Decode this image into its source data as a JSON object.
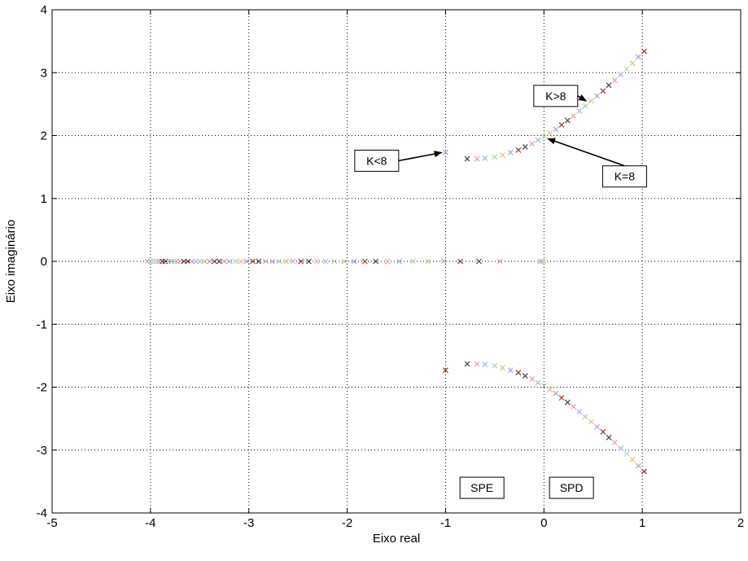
{
  "chart_data": {
    "type": "scatter",
    "title": "",
    "xlabel": "Eixo real",
    "ylabel": "Eixo imaginário",
    "xlim": [
      -5,
      2
    ],
    "ylim": [
      -4,
      4
    ],
    "xticks": [
      -5,
      -4,
      -3,
      -2,
      -1,
      0,
      1,
      2
    ],
    "yticks": [
      -4,
      -3,
      -2,
      -1,
      0,
      1,
      2,
      3,
      4
    ],
    "grid": true,
    "marker": "x",
    "series": [
      {
        "values": [
          {
            "x": -4.03,
            "y": 0
          },
          {
            "x": -4.0,
            "y": 0
          },
          {
            "x": -3.97,
            "y": 0
          },
          {
            "x": -3.94,
            "y": 0
          },
          {
            "x": -3.91,
            "y": 0
          },
          {
            "x": -3.88,
            "y": 0
          },
          {
            "x": -3.85,
            "y": 0
          },
          {
            "x": -3.82,
            "y": 0
          },
          {
            "x": -3.79,
            "y": 0
          },
          {
            "x": -3.76,
            "y": 0
          },
          {
            "x": -3.73,
            "y": 0
          },
          {
            "x": -3.7,
            "y": 0
          },
          {
            "x": -3.66,
            "y": 0
          },
          {
            "x": -3.62,
            "y": 0
          },
          {
            "x": -3.58,
            "y": 0
          },
          {
            "x": -3.54,
            "y": 0
          },
          {
            "x": -3.5,
            "y": 0
          },
          {
            "x": -3.45,
            "y": 0
          },
          {
            "x": -3.4,
            "y": 0
          },
          {
            "x": -3.35,
            "y": 0
          },
          {
            "x": -3.3,
            "y": 0
          },
          {
            "x": -3.25,
            "y": 0
          },
          {
            "x": -3.2,
            "y": 0
          },
          {
            "x": -3.14,
            "y": 0
          },
          {
            "x": -3.08,
            "y": 0
          },
          {
            "x": -3.02,
            "y": 0
          },
          {
            "x": -2.96,
            "y": 0
          },
          {
            "x": -2.9,
            "y": 0
          },
          {
            "x": -2.83,
            "y": 0
          },
          {
            "x": -2.76,
            "y": 0
          },
          {
            "x": -2.69,
            "y": 0
          },
          {
            "x": -2.62,
            "y": 0
          },
          {
            "x": -2.55,
            "y": 0
          },
          {
            "x": -2.47,
            "y": 0
          },
          {
            "x": -2.39,
            "y": 0
          },
          {
            "x": -2.31,
            "y": 0
          },
          {
            "x": -2.22,
            "y": 0
          },
          {
            "x": -2.13,
            "y": 0
          },
          {
            "x": -2.03,
            "y": 0
          },
          {
            "x": -1.93,
            "y": 0
          },
          {
            "x": -1.82,
            "y": 0
          },
          {
            "x": -1.71,
            "y": 0
          },
          {
            "x": -1.59,
            "y": 0
          },
          {
            "x": -1.47,
            "y": 0
          },
          {
            "x": -1.33,
            "y": 0
          },
          {
            "x": -1.18,
            "y": 0
          },
          {
            "x": -1.02,
            "y": 0
          },
          {
            "x": -0.85,
            "y": 0
          },
          {
            "x": -0.66,
            "y": 0
          },
          {
            "x": -0.45,
            "y": 0
          },
          {
            "x": -0.04,
            "y": 0
          },
          {
            "x": -0.02,
            "y": 0
          },
          {
            "x": 0.0,
            "y": 0
          },
          {
            "x": -1.0,
            "y": 1.73
          },
          {
            "x": -1.0,
            "y": -1.73
          },
          {
            "x": -0.78,
            "y": 1.63
          },
          {
            "x": -0.68,
            "y": 1.63
          },
          {
            "x": -0.6,
            "y": 1.64
          },
          {
            "x": -0.5,
            "y": 1.66
          },
          {
            "x": -0.42,
            "y": 1.69
          },
          {
            "x": -0.34,
            "y": 1.73
          },
          {
            "x": -0.26,
            "y": 1.77
          },
          {
            "x": -0.19,
            "y": 1.82
          },
          {
            "x": -0.12,
            "y": 1.87
          },
          {
            "x": -0.06,
            "y": 1.93
          },
          {
            "x": 0.0,
            "y": 1.98
          },
          {
            "x": 0.06,
            "y": 2.04
          },
          {
            "x": 0.12,
            "y": 2.1
          },
          {
            "x": 0.18,
            "y": 2.17
          },
          {
            "x": 0.24,
            "y": 2.24
          },
          {
            "x": 0.3,
            "y": 2.31
          },
          {
            "x": 0.36,
            "y": 2.39
          },
          {
            "x": 0.42,
            "y": 2.47
          },
          {
            "x": 0.48,
            "y": 2.55
          },
          {
            "x": 0.54,
            "y": 2.63
          },
          {
            "x": 0.6,
            "y": 2.71
          },
          {
            "x": 0.66,
            "y": 2.8
          },
          {
            "x": 0.72,
            "y": 2.88
          },
          {
            "x": 0.78,
            "y": 2.97
          },
          {
            "x": 0.84,
            "y": 3.06
          },
          {
            "x": 0.9,
            "y": 3.15
          },
          {
            "x": 0.96,
            "y": 3.25
          },
          {
            "x": 1.02,
            "y": 3.34
          },
          {
            "x": -0.78,
            "y": -1.63
          },
          {
            "x": -0.68,
            "y": -1.63
          },
          {
            "x": -0.6,
            "y": -1.64
          },
          {
            "x": -0.5,
            "y": -1.66
          },
          {
            "x": -0.42,
            "y": -1.69
          },
          {
            "x": -0.34,
            "y": -1.73
          },
          {
            "x": -0.26,
            "y": -1.77
          },
          {
            "x": -0.19,
            "y": -1.82
          },
          {
            "x": -0.12,
            "y": -1.87
          },
          {
            "x": -0.06,
            "y": -1.93
          },
          {
            "x": 0.0,
            "y": -1.98
          },
          {
            "x": 0.06,
            "y": -2.04
          },
          {
            "x": 0.12,
            "y": -2.1
          },
          {
            "x": 0.18,
            "y": -2.17
          },
          {
            "x": 0.24,
            "y": -2.24
          },
          {
            "x": 0.3,
            "y": -2.31
          },
          {
            "x": 0.36,
            "y": -2.39
          },
          {
            "x": 0.42,
            "y": -2.47
          },
          {
            "x": 0.48,
            "y": -2.55
          },
          {
            "x": 0.54,
            "y": -2.63
          },
          {
            "x": 0.6,
            "y": -2.71
          },
          {
            "x": 0.66,
            "y": -2.8
          },
          {
            "x": 0.72,
            "y": -2.88
          },
          {
            "x": 0.78,
            "y": -2.97
          },
          {
            "x": 0.84,
            "y": -3.06
          },
          {
            "x": 0.9,
            "y": -3.15
          },
          {
            "x": 0.96,
            "y": -3.25
          },
          {
            "x": 1.02,
            "y": -3.34
          }
        ]
      }
    ],
    "annotations": [
      {
        "text": "K>8",
        "box": {
          "x": 0.12,
          "y": 2.63
        },
        "arrow_to": {
          "x": 0.43,
          "y": 2.55
        }
      },
      {
        "text": "K<8",
        "box": {
          "x": -1.7,
          "y": 1.6
        },
        "arrow_to": {
          "x": -1.04,
          "y": 1.73
        }
      },
      {
        "text": "K=8",
        "box": {
          "x": 0.82,
          "y": 1.35
        },
        "arrow_to": {
          "x": 0.04,
          "y": 1.95
        }
      },
      {
        "text": "SPE",
        "box": {
          "x": -0.63,
          "y": -3.6
        },
        "arrow_to": null
      },
      {
        "text": "SPD",
        "box": {
          "x": 0.28,
          "y": -3.6
        },
        "arrow_to": null
      }
    ],
    "colors": {
      "axis": "#000000",
      "grid": "#000000",
      "markers": [
        "#e8a0a8",
        "#a0b4e8",
        "#a0d8a8",
        "#e0c080",
        "#b0a0d8",
        "#8a3a2a",
        "#404040"
      ]
    }
  }
}
